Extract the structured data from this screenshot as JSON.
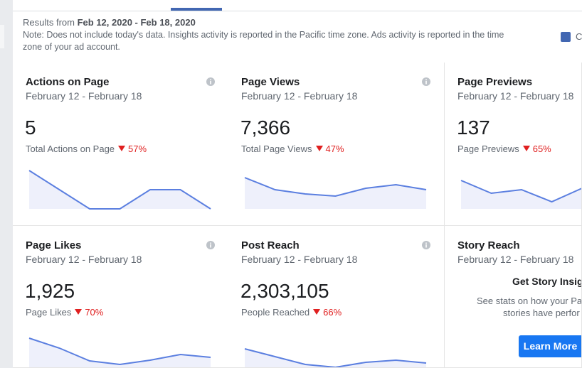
{
  "header": {
    "results_prefix": "Results from",
    "date_range": "Feb 12, 2020 - Feb 18, 2020",
    "note": "Note: Does not include today's data. Insights activity is reported in the Pacific time zone. Ads activity is reported in the time zone of your ad account."
  },
  "legend": {
    "label": "C"
  },
  "cards": [
    {
      "title": "Actions on Page",
      "subtitle": "February 12 - February 18",
      "value": "5",
      "metric_label": "Total Actions on Page",
      "change": "57%",
      "trend": [
        54,
        27,
        0,
        0,
        27,
        27,
        0
      ]
    },
    {
      "title": "Page Views",
      "subtitle": "February 12 - February 18",
      "value": "7,366",
      "metric_label": "Total Page Views",
      "change": "47%",
      "trend": [
        44,
        27,
        21,
        18,
        29,
        34,
        27
      ]
    },
    {
      "title": "Page Previews",
      "subtitle": "February 12 - February 18",
      "value": "137",
      "metric_label": "Page Previews",
      "change": "65%",
      "trend": [
        40,
        22,
        27,
        10,
        29
      ]
    },
    {
      "title": "Page Likes",
      "subtitle": "February 12 - February 18",
      "value": "1,925",
      "metric_label": "Page Likes",
      "change": "70%",
      "trend": [
        48,
        34,
        16,
        11,
        17,
        25,
        21
      ]
    },
    {
      "title": "Post Reach",
      "subtitle": "February 12 - February 18",
      "value": "2,303,105",
      "metric_label": "People Reached",
      "change": "66%",
      "trend": [
        33,
        22,
        11,
        7,
        14,
        17,
        13
      ]
    }
  ],
  "story": {
    "title": "Story Reach",
    "subtitle": "February 12 - February 18",
    "heading": "Get Story Insigh",
    "text_line1": "See stats on how your Pa",
    "text_line2": "stories have perfor",
    "button": "Learn More"
  }
}
